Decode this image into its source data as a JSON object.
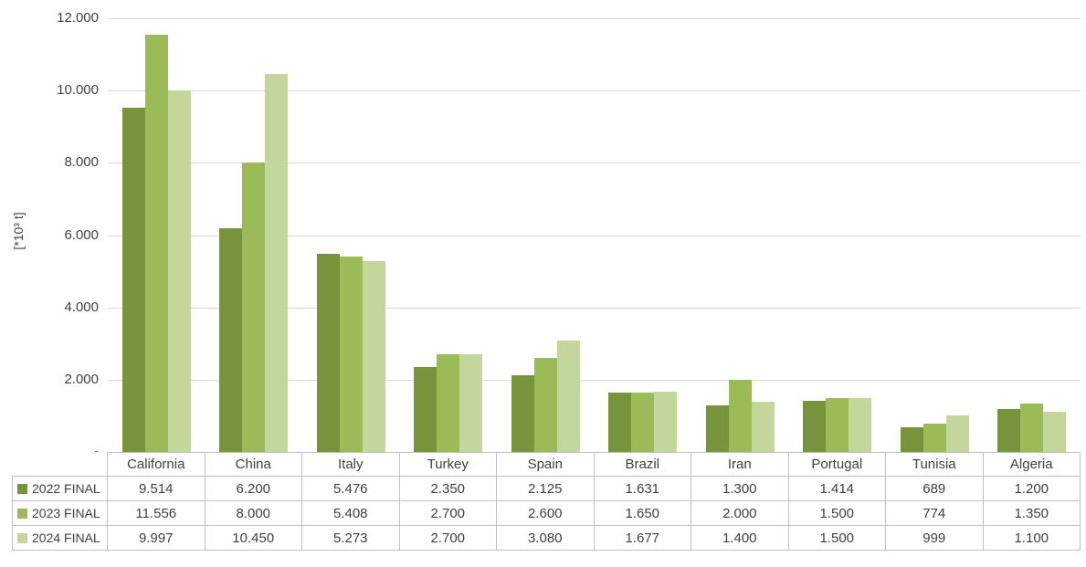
{
  "chart_data": {
    "type": "bar",
    "title": "",
    "xlabel": "",
    "ylabel": "[*10³ t]",
    "categories": [
      "California",
      "China",
      "Italy",
      "Turkey",
      "Spain",
      "Brazil",
      "Iran",
      "Portugal",
      "Tunisia",
      "Algeria"
    ],
    "series": [
      {
        "name": "2022 FINAL",
        "color": "#77933C",
        "values": [
          9514,
          6200,
          5476,
          2350,
          2125,
          1631,
          1300,
          1414,
          689,
          1200
        ],
        "labels": [
          "9.514",
          "6.200",
          "5.476",
          "2.350",
          "2.125",
          "1.631",
          "1.300",
          "1.414",
          "689",
          "1.200"
        ]
      },
      {
        "name": "2023 FINAL",
        "color": "#9BBB59",
        "values": [
          11556,
          8000,
          5408,
          2700,
          2600,
          1650,
          2000,
          1500,
          774,
          1350
        ],
        "labels": [
          "11.556",
          "8.000",
          "5.408",
          "2.700",
          "2.600",
          "1.650",
          "2.000",
          "1.500",
          "774",
          "1.350"
        ]
      },
      {
        "name": "2024 FINAL",
        "color": "#C3D69B",
        "values": [
          9997,
          10450,
          5273,
          2700,
          3080,
          1677,
          1400,
          1500,
          999,
          1100
        ],
        "labels": [
          "9.997",
          "10.450",
          "5.273",
          "2.700",
          "3.080",
          "1.677",
          "1.400",
          "1.500",
          "999",
          "1.100"
        ]
      }
    ],
    "ylim": [
      0,
      12000
    ],
    "yticks": [
      {
        "value": 12000,
        "label": "12.000"
      },
      {
        "value": 10000,
        "label": "10.000"
      },
      {
        "value": 8000,
        "label": "8.000"
      },
      {
        "value": 6000,
        "label": "6.000"
      },
      {
        "value": 4000,
        "label": "4.000"
      },
      {
        "value": 2000,
        "label": "2.000"
      },
      {
        "value": 0,
        "label": "-"
      }
    ],
    "grid": true,
    "legend_position": "table-left-column"
  },
  "colors": {
    "gridline": "#D9D9D9",
    "axis_and_table_border": "#BFBFBF",
    "text": "#404040",
    "background": "#FFFFFF"
  }
}
